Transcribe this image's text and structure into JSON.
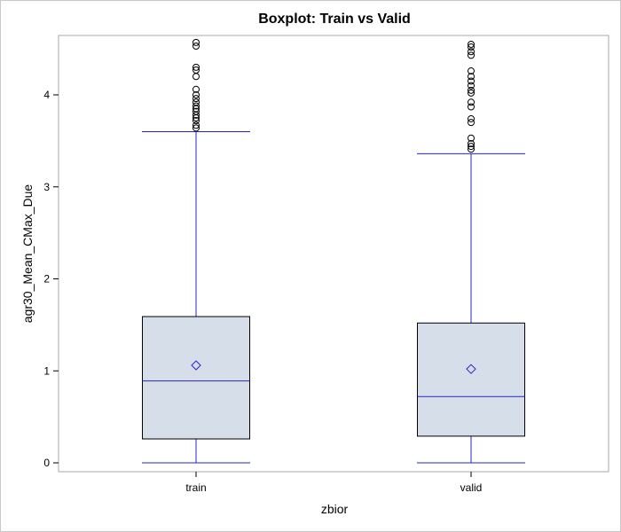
{
  "chart_data": {
    "type": "boxplot",
    "title": "Boxplot: Train vs Valid",
    "xlabel": "zbior",
    "ylabel": "agr30_Mean_CMax_Due",
    "categories": [
      "train",
      "valid"
    ],
    "ylim": [
      -0.1,
      4.65
    ],
    "yticks": [
      0,
      1,
      2,
      3,
      4
    ],
    "grid": false,
    "boxes": [
      {
        "category": "train",
        "min": 0.0,
        "q1": 0.26,
        "median": 0.89,
        "q3": 1.59,
        "whisker_high": 3.6,
        "mean": 1.06,
        "outliers": [
          3.64,
          3.67,
          3.72,
          3.75,
          3.78,
          3.82,
          3.85,
          3.88,
          3.92,
          3.96,
          4.0,
          4.06,
          4.2,
          4.27,
          4.3,
          4.53,
          4.57
        ]
      },
      {
        "category": "valid",
        "min": 0.0,
        "q1": 0.29,
        "median": 0.72,
        "q3": 1.52,
        "whisker_high": 3.36,
        "mean": 1.02,
        "outliers": [
          3.41,
          3.44,
          3.47,
          3.53,
          3.7,
          3.74,
          3.87,
          3.92,
          4.02,
          4.05,
          4.1,
          4.15,
          4.2,
          4.26,
          4.43,
          4.47,
          4.52,
          4.55
        ]
      }
    ],
    "colors": {
      "box_fill": "#d6dee9",
      "box_stroke": "#000000",
      "whisker": "#2424c8",
      "median": "#2424c8",
      "mean_marker": "#2424c8",
      "outlier": "#000000"
    }
  }
}
